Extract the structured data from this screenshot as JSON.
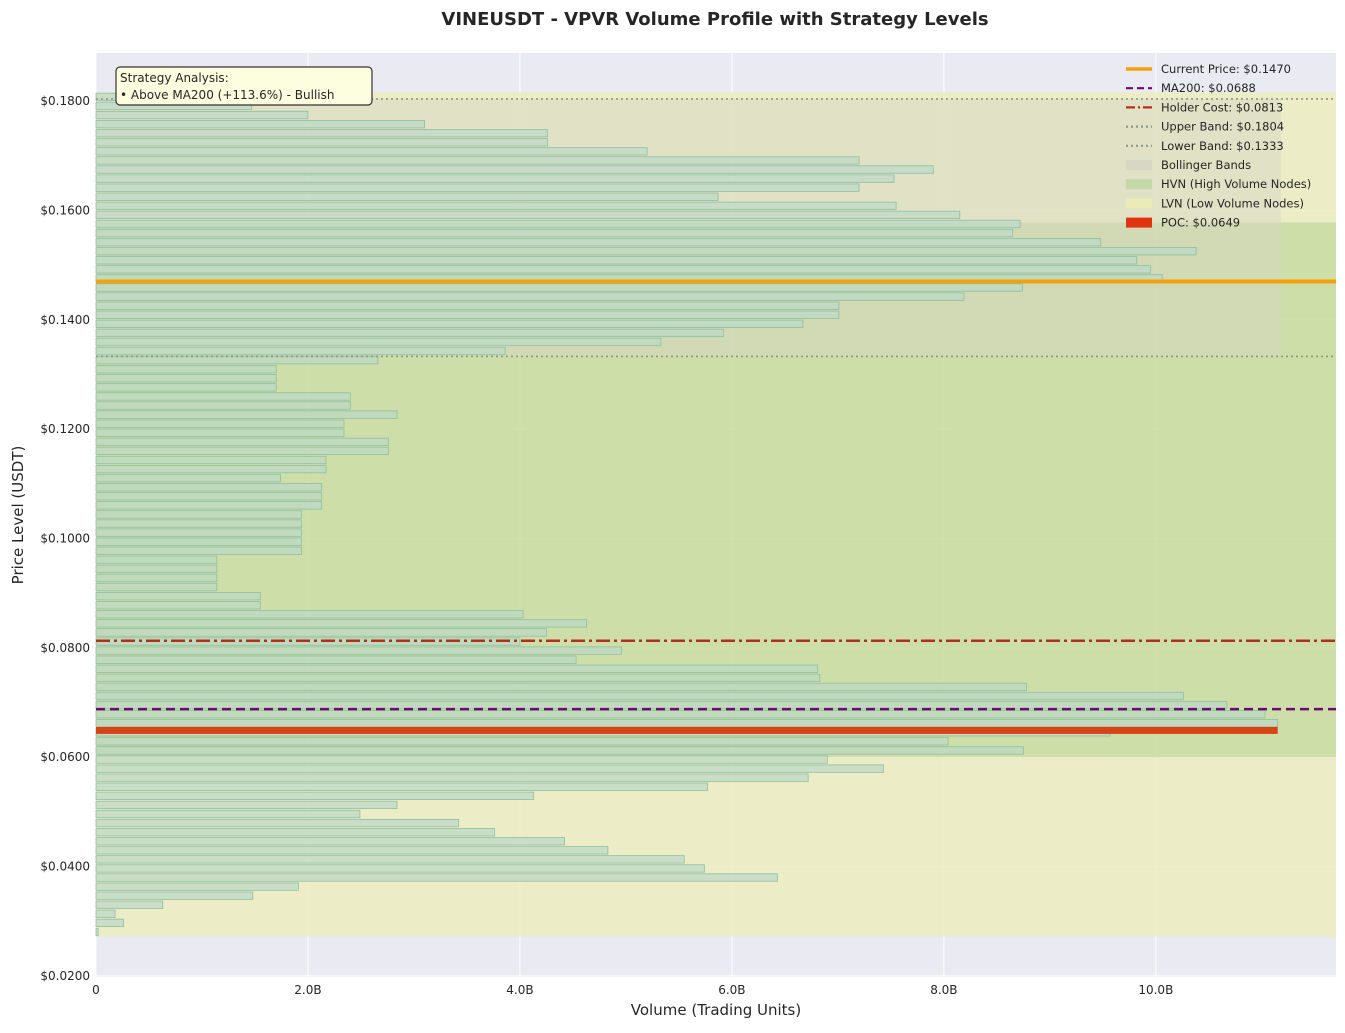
{
  "chart_data": {
    "type": "bar",
    "orientation": "horizontal",
    "title": "VINEUSDT - VPVR Volume Profile with Strategy Levels",
    "xlabel": "Volume (Trading Units)",
    "ylabel": "Price Level (USDT)",
    "xlim": [
      0,
      11.7
    ],
    "ylim": [
      0.0198,
      0.1888
    ],
    "x_unit": "B",
    "x_ticks": [
      0,
      2,
      4,
      6,
      8,
      10
    ],
    "x_tick_labels": [
      "0",
      "2.0B",
      "4.0B",
      "6.0B",
      "8.0B",
      "10.0B"
    ],
    "y_ticks": [
      0.02,
      0.04,
      0.06,
      0.08,
      0.1,
      0.12,
      0.14,
      0.16,
      0.18
    ],
    "y_tick_labels": [
      "$0.0200",
      "$0.0400",
      "$0.0600",
      "$0.0800",
      "$0.1000",
      "$0.1200",
      "$0.1400",
      "$0.1600",
      "$0.1800"
    ],
    "grid": true,
    "legend_position": "top-right",
    "bin_price_min": 0.0272,
    "bin_price_max": 0.1816,
    "bin_count": 93,
    "volumes_billion": [
      0.02,
      0.26,
      0.18,
      0.63,
      1.48,
      1.91,
      6.43,
      5.74,
      5.55,
      4.83,
      4.42,
      3.76,
      3.42,
      2.49,
      2.84,
      4.13,
      5.77,
      6.72,
      7.43,
      6.9,
      8.75,
      8.04,
      9.57,
      11.15,
      11.03,
      10.67,
      10.26,
      8.78,
      6.83,
      6.81,
      4.53,
      4.96,
      4.0,
      4.25,
      4.63,
      4.03,
      1.55,
      1.55,
      1.14,
      1.14,
      1.14,
      1.14,
      1.94,
      1.94,
      1.94,
      1.94,
      1.94,
      2.13,
      2.13,
      2.13,
      1.74,
      2.17,
      2.17,
      2.76,
      2.76,
      2.34,
      2.34,
      2.84,
      2.4,
      2.4,
      1.7,
      1.7,
      1.7,
      2.66,
      3.86,
      5.33,
      5.92,
      6.67,
      7.01,
      7.01,
      8.19,
      8.74,
      10.06,
      9.95,
      9.82,
      10.38,
      9.48,
      8.65,
      8.72,
      8.15,
      7.55,
      5.87,
      7.2,
      7.53,
      7.9,
      7.2,
      5.2,
      4.26,
      4.26,
      3.1,
      2.0,
      1.47,
      1.47
    ],
    "hvn_zones": [
      [
        0.06,
        0.1578
      ]
    ],
    "lvn_zones": [
      [
        0.0272,
        0.06
      ],
      [
        0.1578,
        0.1816
      ]
    ],
    "bollinger_band": {
      "lower": 0.1333,
      "upper": 0.1804,
      "x_extent": 11.18
    },
    "levels": {
      "current_price": 0.147,
      "ma200": 0.0688,
      "holder_cost": 0.0813,
      "upper_band": 0.1804,
      "lower_band": 0.1333,
      "poc": 0.0649,
      "poc_volume": 11.15
    },
    "legend": [
      {
        "label": "Current Price: $0.1470",
        "style": "line-solid",
        "color": "#f5a10a"
      },
      {
        "label": "MA200: $0.0688",
        "style": "line-dashed",
        "color": "#6b0a6e"
      },
      {
        "label": "Holder Cost: $0.0813",
        "style": "line-dashdot",
        "color": "#b03020"
      },
      {
        "label": "Upper Band: $0.1804",
        "style": "line-dotted",
        "color": "#8e9a84"
      },
      {
        "label": "Lower Band: $0.1333",
        "style": "line-dotted",
        "color": "#8e9a84"
      },
      {
        "label": "Bollinger Bands",
        "style": "patch",
        "color": "#d4d4c4"
      },
      {
        "label": "HVN (High Volume Nodes)",
        "style": "patch",
        "color": "#bed6a0"
      },
      {
        "label": "LVN (Low Volume Nodes)",
        "style": "patch",
        "color": "#eeeeb4"
      },
      {
        "label": "POC: $0.0649",
        "style": "patch",
        "color": "#e03510"
      }
    ],
    "annotation": {
      "title": "Strategy Analysis:",
      "text": "• Above MA200 (+113.6%) - Bullish"
    }
  },
  "colors": {
    "plot_bg": "#eaeaf2",
    "bar_fill": "#bcd9c8",
    "bar_edge": "#8fbfa0",
    "hvn": "#c9dc9c",
    "lvn": "#ececc0",
    "band": "#d4d4c4",
    "current_price": "#f5a10a",
    "ma200": "#6b0a6e",
    "holder_cost": "#b03020",
    "band_line": "#8e9a84",
    "poc": "#d84315",
    "annotation_bg": "#fdfde0"
  }
}
